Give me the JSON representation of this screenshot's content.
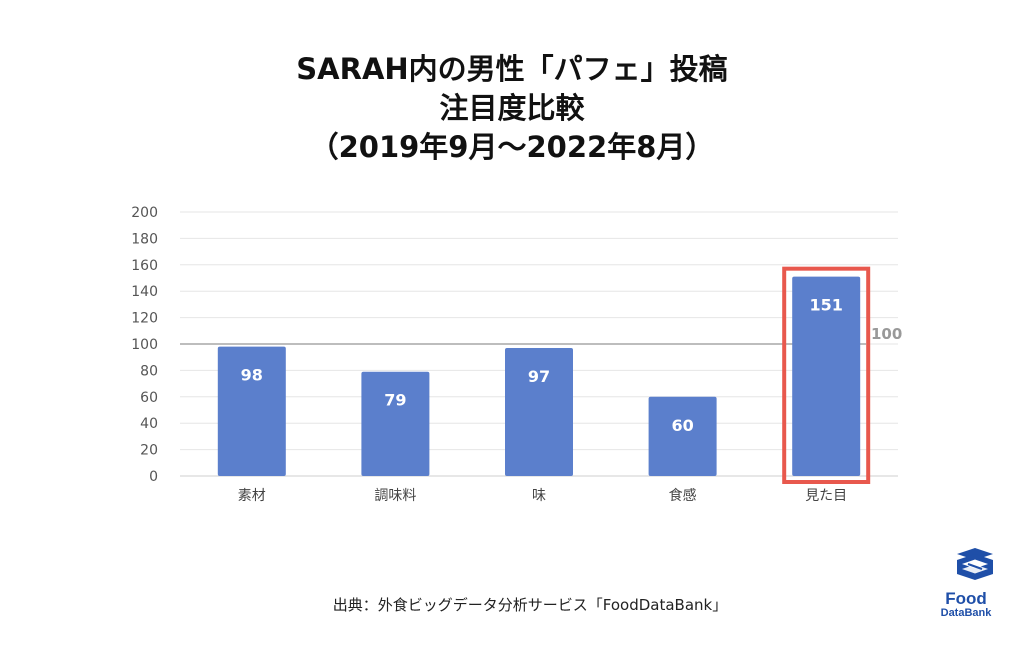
{
  "title": {
    "line1": "SARAH内の男性「パフェ」投稿",
    "line2": "注目度比較",
    "line3": "（2019年9月〜2022年8月）"
  },
  "chart_data": {
    "type": "bar",
    "categories": [
      "素材",
      "調味料",
      "味",
      "食感",
      "見た目"
    ],
    "values": [
      98,
      79,
      97,
      60,
      151
    ],
    "ylim": [
      0,
      200
    ],
    "yticks": [
      "0",
      "20",
      "40",
      "60",
      "80",
      "100",
      "120",
      "140",
      "160",
      "180",
      "200"
    ],
    "reference_line": {
      "value": 100,
      "label": "100"
    },
    "highlight_index": 4,
    "grid": true,
    "colors": {
      "bar": "#5b7fcc",
      "highlight_box": "#e8584d",
      "grid": "#e6e6e6",
      "ref_line": "#bdbdbd"
    }
  },
  "source": "出典：外食ビッグデータ分析サービス「FoodDataBank」",
  "logo": {
    "line1": "Food",
    "line2": "DataBank",
    "icon": "stacked-layers-icon",
    "color": "#1f4fa8"
  }
}
